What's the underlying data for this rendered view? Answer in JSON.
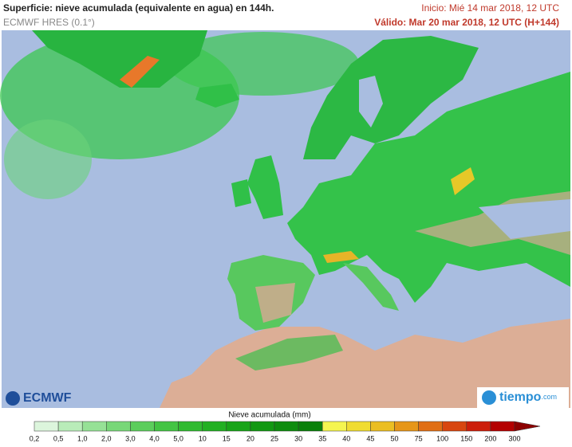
{
  "header": {
    "title": "Superficie: nieve acumulada (equivalente en agua) en 144h.",
    "model": "ECMWF HRES (0.1°)",
    "init": "Inicio: Mié 14 mar 2018, 12 UTC",
    "valid": "Válido: Mar 20 mar 2018, 12 UTC (H+144)"
  },
  "logos": {
    "left": "ECMWF",
    "right": "tiempo",
    "right_suffix": ".com"
  },
  "legend": {
    "title": "Nieve acumulada (mm)",
    "labels": [
      "0,2",
      "0,5",
      "1,0",
      "2,0",
      "3,0",
      "4,0",
      "5,0",
      "10",
      "15",
      "20",
      "25",
      "30",
      "35",
      "40",
      "45",
      "50",
      "75",
      "100",
      "150",
      "200",
      "300"
    ],
    "colors": [
      "#dcf5dc",
      "#b9ecb9",
      "#96e196",
      "#78d778",
      "#5ccd5c",
      "#44c444",
      "#30ba30",
      "#22b022",
      "#18a418",
      "#129812",
      "#0e8c0e",
      "#0a800a",
      "#f5f550",
      "#f0dc32",
      "#ebbe23",
      "#e69619",
      "#e06e14",
      "#d8460f",
      "#cc1e0a",
      "#b40000",
      "#8c0000"
    ]
  }
}
